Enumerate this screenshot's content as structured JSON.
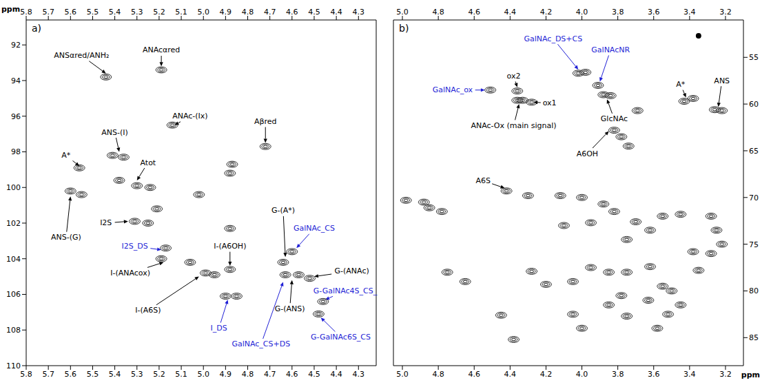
{
  "chart_data": [
    {
      "type": "scatter",
      "title": "a)",
      "x_label": "ppm",
      "xlim": [
        5.8,
        4.22
      ],
      "ylim": [
        110,
        90.6
      ],
      "xticks": [
        5.8,
        5.7,
        5.6,
        5.5,
        5.4,
        5.3,
        5.2,
        5.1,
        {
          "value": 5,
          "label": "5.0"
        },
        4.9,
        4.8,
        4.7,
        4.6,
        4.5,
        4.4,
        4.3
      ],
      "yticks": [
        92,
        94,
        96,
        98,
        100,
        102,
        104,
        106,
        108,
        110
      ],
      "series": [
        {
          "color": "#000000",
          "marker": "contour",
          "x": [
            5.44,
            5.19,
            5.14,
            4.72,
            5.56,
            5.41,
            5.36,
            5.38,
            5.3,
            5.24,
            4.88,
            4.87,
            5.6,
            5.55,
            5.02,
            5.31,
            5.25,
            5.21,
            5.17,
            5.19,
            4.88,
            5.06,
            4.99,
            4.95,
            4.88,
            4.9,
            4.85,
            4.63,
            4.57,
            4.6,
            4.52,
            4.46,
            4.48,
            4.64
          ],
          "y": [
            93.8,
            93.4,
            96.5,
            97.7,
            98.9,
            98.2,
            98.3,
            99.6,
            99.9,
            100.0,
            99.2,
            98.7,
            100.2,
            100.4,
            100.4,
            101.9,
            102.0,
            101.2,
            103.4,
            104.0,
            102.3,
            104.2,
            104.8,
            104.9,
            104.6,
            106.1,
            106.1,
            104.9,
            104.9,
            103.6,
            105.1,
            106.4,
            107.1,
            104.2
          ]
        }
      ],
      "annotations": [
        {
          "text": "ANSαred/ANH₂",
          "color": "#000000",
          "xy": [
            5.44,
            93.6
          ],
          "xytext": [
            5.55,
            92.6
          ]
        },
        {
          "text": "ANAcαred",
          "color": "#000000",
          "xy": [
            5.19,
            93.2
          ],
          "xytext": [
            5.19,
            92.3
          ]
        },
        {
          "text": "ANAc-(Ix)",
          "color": "#000000",
          "xy": [
            5.13,
            96.5
          ],
          "xytext": [
            5.06,
            96.0
          ]
        },
        {
          "text": "Aβred",
          "color": "#000000",
          "xy": [
            4.72,
            97.5
          ],
          "xytext": [
            4.72,
            96.3
          ]
        },
        {
          "text": "A*",
          "color": "#000000",
          "xy": [
            5.56,
            98.8
          ],
          "xytext": [
            5.62,
            98.2
          ]
        },
        {
          "text": "ANS-(I)",
          "color": "#000000",
          "xy": [
            5.38,
            98.0
          ],
          "xytext": [
            5.4,
            96.9
          ]
        },
        {
          "text": "Atot",
          "color": "#000000",
          "xy": [
            5.3,
            99.6
          ],
          "xytext": [
            5.25,
            98.6
          ]
        },
        {
          "text": "ANS-(G)",
          "color": "#000000",
          "xy": [
            5.6,
            100.5
          ],
          "xytext": [
            5.62,
            102.8
          ]
        },
        {
          "text": "I2S",
          "color": "#000000",
          "xy": [
            5.34,
            101.9
          ],
          "xytext": [
            5.44,
            102.0
          ]
        },
        {
          "text": "I2S_DS",
          "color": "#1f1fd6",
          "xy": [
            5.19,
            103.5
          ],
          "xytext": [
            5.31,
            103.3
          ]
        },
        {
          "text": "I-(ANAcox)",
          "color": "#000000",
          "xy": [
            5.18,
            104.2
          ],
          "xytext": [
            5.33,
            104.8
          ]
        },
        {
          "text": "I-(A6S)",
          "color": "#000000",
          "xy": [
            5.02,
            105.0
          ],
          "xytext": [
            5.25,
            106.9
          ]
        },
        {
          "text": "I-(A6OH)",
          "color": "#000000",
          "xy": [
            4.88,
            104.4
          ],
          "xytext": [
            4.88,
            103.3
          ]
        },
        {
          "text": "I_DS",
          "color": "#1f1fd6",
          "xy": [
            4.89,
            106.3
          ],
          "xytext": [
            4.93,
            107.9
          ]
        },
        {
          "text": "G-(A*)",
          "color": "#000000",
          "xy": [
            4.63,
            103.9
          ],
          "xytext": [
            4.64,
            101.3
          ]
        },
        {
          "text": "GalNAc_CS",
          "color": "#1f1fd6",
          "xy": [
            4.58,
            103.4
          ],
          "xytext": [
            4.5,
            102.3
          ]
        },
        {
          "text": "G-(ANAc)",
          "color": "#000000",
          "xy": [
            4.5,
            105.0
          ],
          "xytext": [
            4.33,
            104.7
          ]
        },
        {
          "text": "G-(ANS)",
          "color": "#000000",
          "xy": [
            4.6,
            105.2
          ],
          "xytext": [
            4.61,
            106.8
          ]
        },
        {
          "text": "G-GalNAc4S_CS_",
          "color": "#1f1fd6",
          "xy": [
            4.45,
            106.3
          ],
          "xytext": [
            4.36,
            105.8
          ]
        },
        {
          "text": "G-GalNAc6S_CS",
          "color": "#1f1fd6",
          "xy": [
            4.47,
            107.3
          ],
          "xytext": [
            4.38,
            108.4
          ]
        },
        {
          "text": "GalNAc_CS+DS",
          "color": "#1f1fd6",
          "xy": [
            4.64,
            105.3
          ],
          "xytext": [
            4.74,
            108.8
          ]
        }
      ]
    },
    {
      "type": "scatter",
      "title": "b)",
      "x_label": "ppm",
      "xlim": [
        5.05,
        3.1
      ],
      "ylim": [
        88,
        51
      ],
      "xticks": [
        {
          "value": 5,
          "label": "5.0"
        },
        4.8,
        4.6,
        4.4,
        4.2,
        {
          "value": 4,
          "label": "4.0"
        },
        3.8,
        3.6,
        3.4,
        3.2
      ],
      "yticks": [
        55,
        60,
        65,
        70,
        75,
        80,
        85
      ],
      "series": [
        {
          "color": "#000000",
          "marker": "contour",
          "x": [
            4.51,
            4.36,
            4.36,
            4.33,
            4.28,
            4.02,
            3.98,
            3.91,
            3.88,
            3.84,
            3.43,
            3.38,
            3.26,
            3.22,
            3.82,
            3.78,
            3.74,
            3.69,
            4.42,
            4.3,
            4.12,
            4.0,
            3.88,
            4.98,
            4.88,
            4.85,
            4.78,
            3.55,
            3.45,
            3.28,
            3.22,
            3.28,
            3.38,
            3.62,
            3.7,
            3.82,
            3.95,
            4.1,
            3.75,
            3.95,
            3.85,
            3.75,
            4.2,
            4.28,
            4.05,
            3.62,
            3.55,
            3.5,
            3.45,
            3.52,
            3.58,
            3.78,
            3.85,
            4.05,
            4.45,
            4.38,
            4.75,
            4.65,
            3.35,
            3.25,
            4.0,
            3.75,
            3.63
          ],
          "y": [
            58.5,
            58.6,
            59.6,
            59.6,
            59.8,
            56.7,
            56.6,
            58.0,
            59.0,
            59.1,
            59.7,
            59.4,
            60.6,
            60.7,
            62.8,
            63.5,
            64.5,
            60.7,
            69.3,
            69.8,
            69.8,
            70.0,
            70.7,
            70.3,
            70.5,
            71.1,
            71.5,
            72.0,
            71.8,
            72.0,
            75.0,
            76.0,
            75.8,
            73.5,
            72.6,
            71.5,
            72.7,
            73.0,
            74.5,
            77.5,
            78.0,
            78.0,
            79.3,
            77.9,
            79.0,
            77.4,
            79.5,
            80.0,
            81.5,
            82.5,
            84.0,
            80.5,
            81.5,
            82.5,
            82.6,
            85.2,
            78.0,
            79.0,
            77.8,
            73.5,
            84.0,
            82.7,
            81.0
          ]
        },
        {
          "color": "#000000",
          "marker": "dot",
          "x": [
            3.35
          ],
          "y": [
            52.7
          ]
        }
      ],
      "annotations": [
        {
          "text": "GalNAc_DS+CS",
          "color": "#1f1fd6",
          "xy": [
            4.02,
            56.3
          ],
          "xytext": [
            4.16,
            53.0
          ]
        },
        {
          "text": "GalNAcNR",
          "color": "#1f1fd6",
          "xy": [
            3.9,
            57.6
          ],
          "xytext": [
            3.84,
            54.2
          ]
        },
        {
          "text": "GalNAc_ox",
          "color": "#1f1fd6",
          "xy": [
            4.54,
            58.5
          ],
          "xytext": [
            4.72,
            58.5
          ]
        },
        {
          "text": "ox2",
          "color": "#000000",
          "xy": [
            4.36,
            58.2
          ],
          "xytext": [
            4.38,
            57.0
          ]
        },
        {
          "text": "ox1",
          "color": "#000000",
          "xy": [
            4.27,
            59.8
          ],
          "xytext": [
            4.18,
            59.9
          ]
        },
        {
          "text": "ANAc-Ox (main signal)",
          "color": "#000000",
          "xy": [
            4.35,
            60.0
          ],
          "xytext": [
            4.38,
            62.3
          ]
        },
        {
          "text": "GlcNAc",
          "color": "#000000",
          "xy": [
            3.86,
            59.5
          ],
          "xytext": [
            3.82,
            61.6
          ]
        },
        {
          "text": "A*",
          "color": "#000000",
          "xy": [
            3.42,
            59.3
          ],
          "xytext": [
            3.45,
            57.9
          ]
        },
        {
          "text": "ANS",
          "color": "#000000",
          "xy": [
            3.24,
            60.3
          ],
          "xytext": [
            3.22,
            57.5
          ]
        },
        {
          "text": "A6OH",
          "color": "#000000",
          "xy": [
            3.85,
            62.9
          ],
          "xytext": [
            3.97,
            65.3
          ]
        },
        {
          "text": "A6S",
          "color": "#000000",
          "xy": [
            4.43,
            69.0
          ],
          "xytext": [
            4.55,
            68.2
          ]
        }
      ]
    }
  ]
}
